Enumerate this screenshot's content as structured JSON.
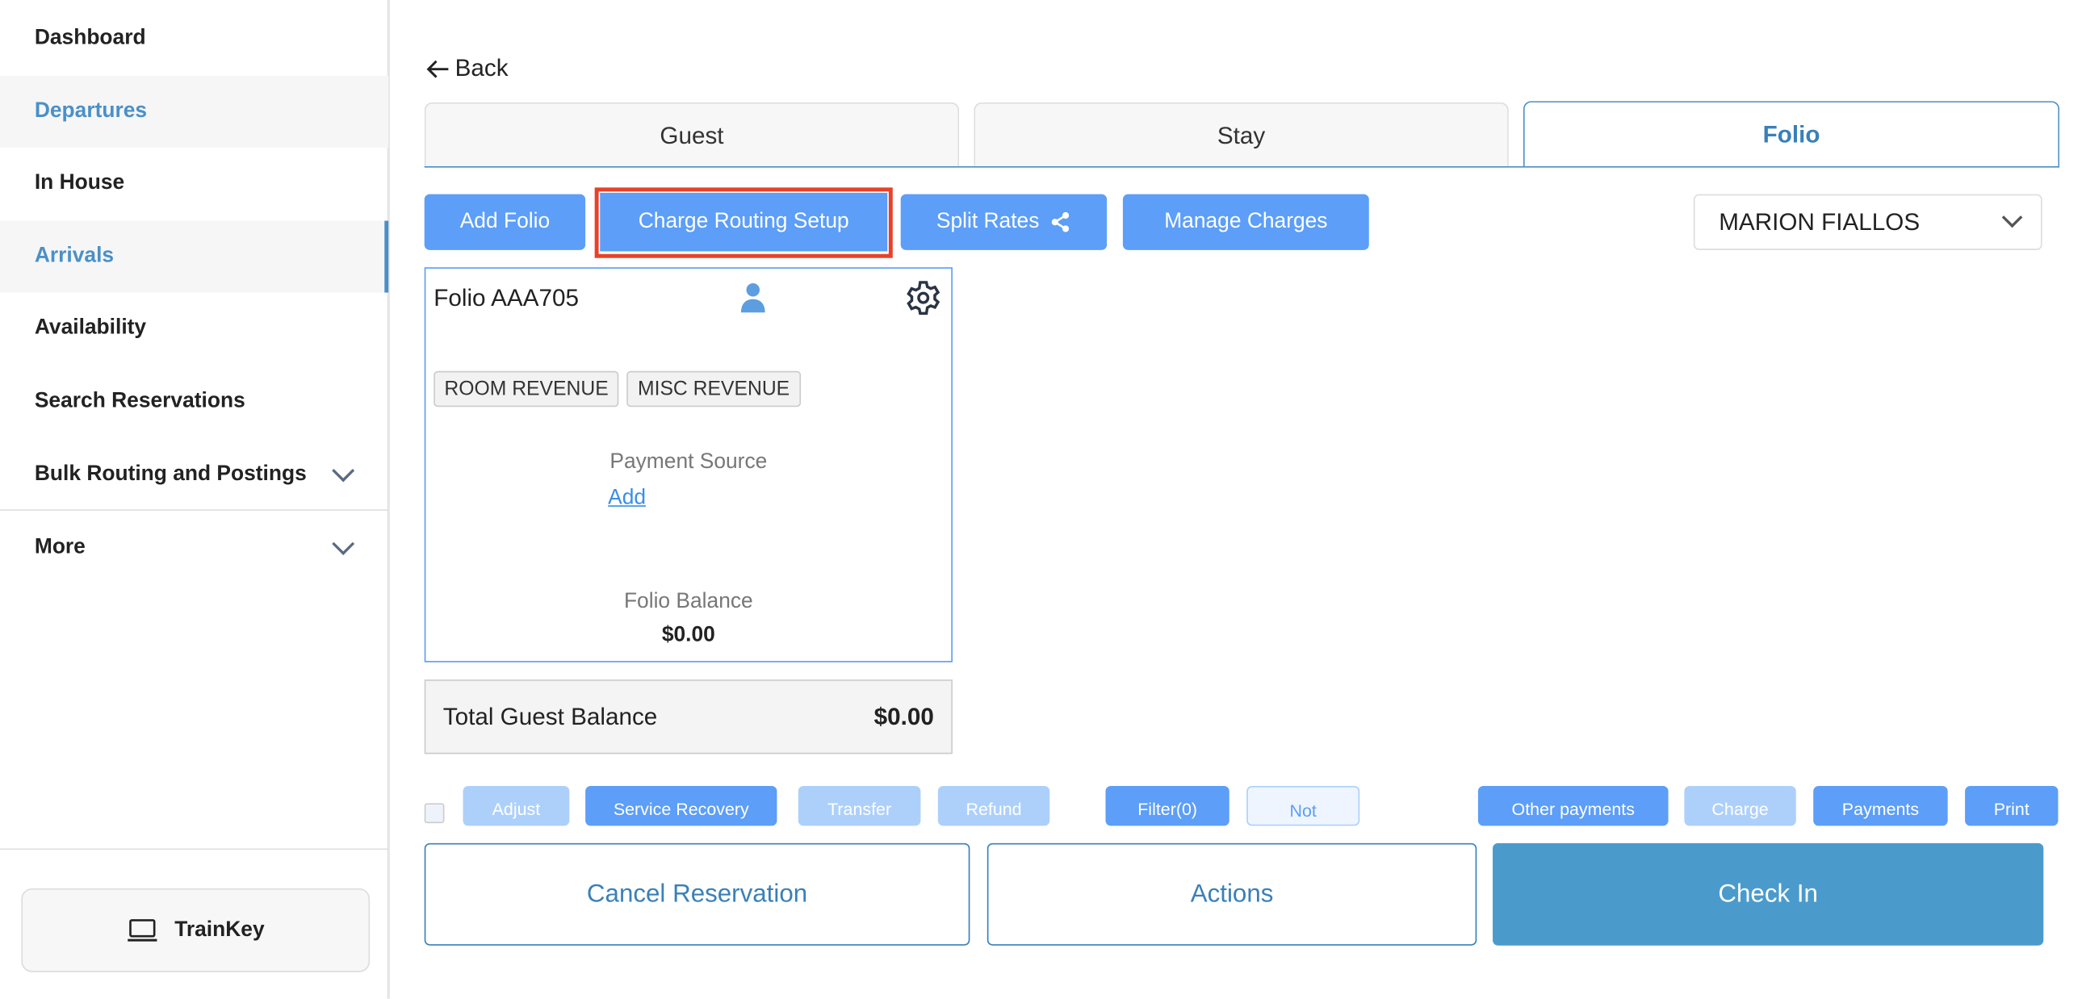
{
  "sidebar": {
    "items": [
      {
        "label": "Dashboard"
      },
      {
        "label": "Departures"
      },
      {
        "label": "In House"
      },
      {
        "label": "Arrivals"
      },
      {
        "label": "Availability"
      },
      {
        "label": "Search Reservations"
      },
      {
        "label": "Bulk Routing and Postings"
      },
      {
        "label": "More"
      }
    ],
    "trainkey": "TrainKey"
  },
  "back": "Back",
  "tabs": [
    {
      "label": "Guest"
    },
    {
      "label": "Stay"
    },
    {
      "label": "Folio"
    }
  ],
  "toolbar": {
    "add_folio": "Add Folio",
    "charge_routing": "Charge Routing Setup",
    "split_rates": "Split Rates",
    "manage_charges": "Manage Charges",
    "guest_select": "MARION FIALLOS"
  },
  "folio": {
    "title": "Folio AAA705",
    "tags": [
      "ROOM REVENUE",
      "MISC REVENUE"
    ],
    "payment_source_label": "Payment Source",
    "payment_add": "Add",
    "balance_label": "Folio Balance",
    "balance": "$0.00"
  },
  "total": {
    "label": "Total Guest Balance",
    "value": "$0.00"
  },
  "transactions_toolbar": [
    "Adjust",
    "Service Recovery",
    "Transfer",
    "Refund",
    "Filter(0)",
    "Not",
    "Other payments",
    "Charge",
    "Payments",
    "Print"
  ],
  "footer": {
    "cancel": "Cancel Reservation",
    "actions": "Actions",
    "checkin": "Check In"
  },
  "colors": {
    "primary": "#5c9ef8",
    "accent": "#4a90c8",
    "highlight": "#e8412a",
    "checkin": "#4a9bcc"
  }
}
